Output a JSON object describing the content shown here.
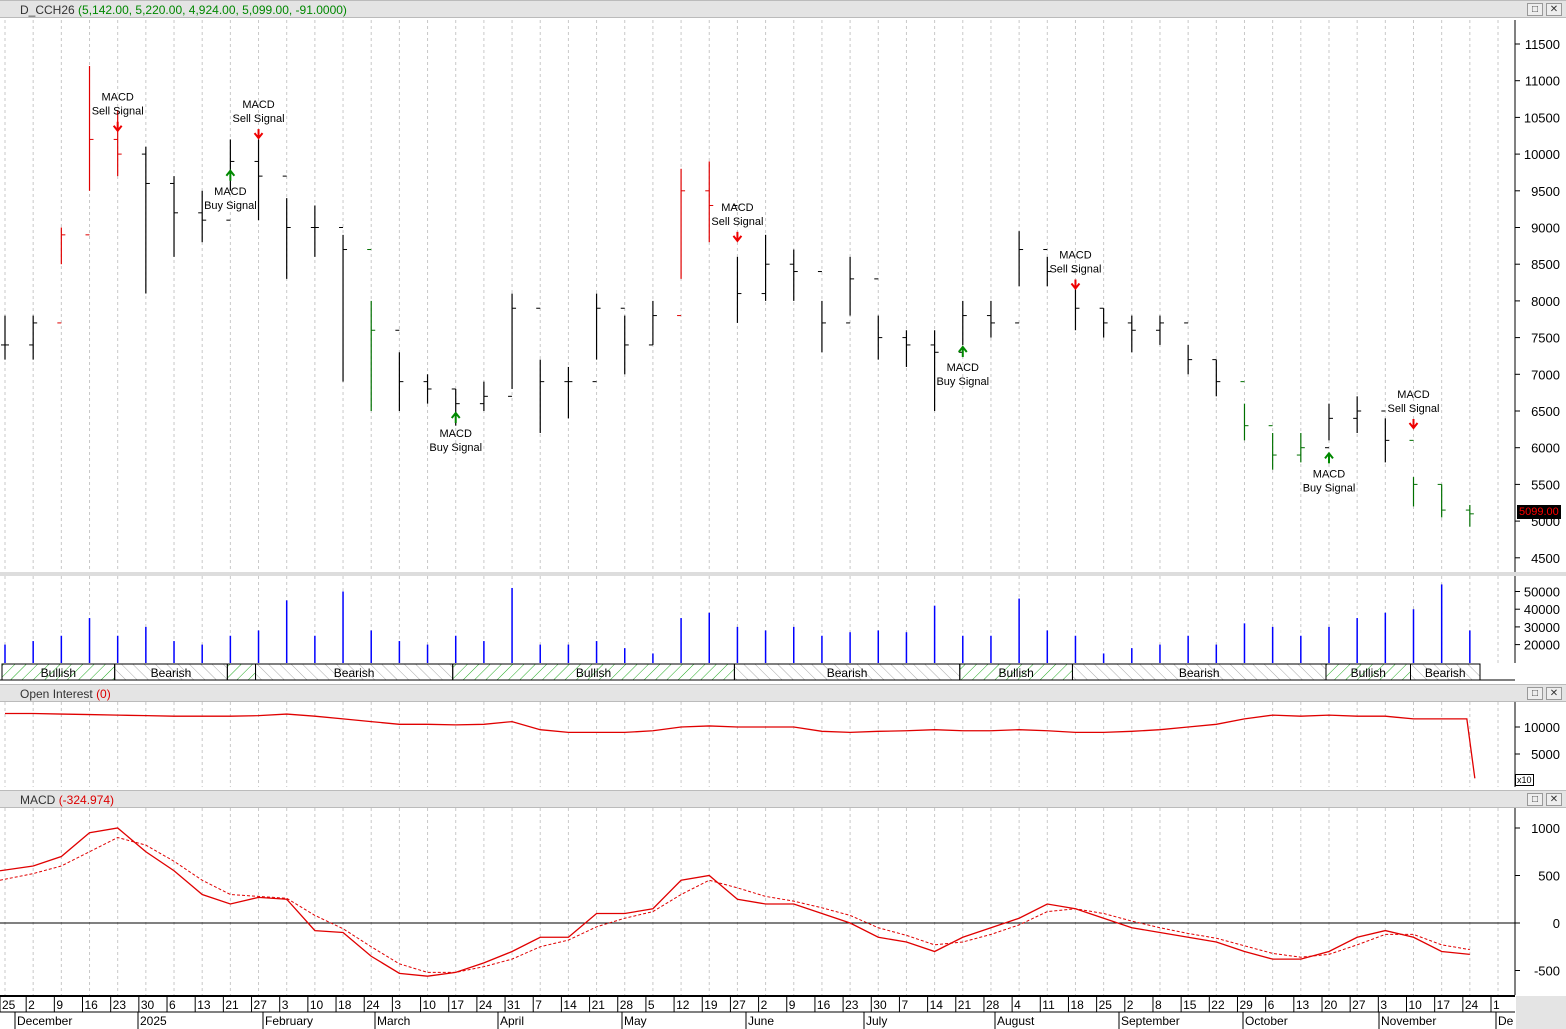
{
  "title": {
    "symbol": "D_CCH26",
    "values": "(5,142.00, 5,220.00, 4,924.00, 5,099.00, -91.0000)"
  },
  "oi_panel": {
    "label": "Open Interest",
    "value": "(0)",
    "scale_note": "x10"
  },
  "macd_panel": {
    "label": "MACD",
    "value": "(-324.974)"
  },
  "window_buttons": {
    "restore": "□",
    "close": "✕"
  },
  "last_price_label": "5099.00",
  "colors": {
    "up": "#e00000",
    "down": "#007000",
    "neutral": "#000000",
    "volume": "#0000ff",
    "oi": "#e00000",
    "macd": "#e00000",
    "last_price_bg": "#000000",
    "last_price_fg": "#ff0000"
  },
  "chart_data": [
    {
      "type": "ohlc",
      "title": "D_CCH26",
      "ylim": [
        4300,
        11800
      ],
      "yticks": [
        4500,
        5000,
        5500,
        6000,
        6500,
        7000,
        7500,
        8000,
        8500,
        9000,
        9500,
        10000,
        10500,
        11000,
        11500
      ],
      "x": [
        "Nov 25",
        "Dec 2",
        "Dec 9",
        "Dec 16",
        "Dec 23",
        "Dec 30",
        "Jan 6",
        "Jan 13",
        "Jan 21",
        "Jan 27",
        "Feb 3",
        "Feb 10",
        "Feb 18",
        "Feb 24",
        "Mar 3",
        "Mar 10",
        "Mar 17",
        "Mar 24",
        "Mar 31",
        "Apr 7",
        "Apr 14",
        "Apr 21",
        "Apr 28",
        "May 5",
        "May 12",
        "May 19",
        "May 27",
        "Jun 2",
        "Jun 9",
        "Jun 16",
        "Jun 23",
        "Jun 30",
        "Jul 7",
        "Jul 14",
        "Jul 21",
        "Jul 28",
        "Aug 4",
        "Aug 11",
        "Aug 18",
        "Aug 25",
        "Sep 2",
        "Sep 8",
        "Sep 15",
        "Sep 22",
        "Sep 29",
        "Oct 6",
        "Oct 13",
        "Oct 20",
        "Oct 27",
        "Nov 3",
        "Nov 10",
        "Nov 17",
        "Nov 24"
      ],
      "high": [
        7800,
        7800,
        9000,
        11200,
        10600,
        10100,
        9700,
        9500,
        10200,
        10200,
        9400,
        9300,
        8900,
        8000,
        7300,
        7000,
        6800,
        6900,
        8100,
        7200,
        7100,
        8100,
        7800,
        8000,
        9800,
        9900,
        8600,
        8900,
        8700,
        8000,
        8600,
        7800,
        7600,
        7600,
        8000,
        8000,
        8950,
        8600,
        8200,
        7900,
        7800,
        7800,
        7400,
        7200,
        6600,
        6200,
        6200,
        6600,
        6700,
        6400,
        5600,
        5500,
        5220
      ],
      "low": [
        7200,
        7200,
        8500,
        9500,
        9700,
        8100,
        8600,
        8800,
        9500,
        9100,
        8300,
        8600,
        6900,
        6500,
        6500,
        6600,
        6300,
        6500,
        6800,
        6200,
        6400,
        7200,
        7000,
        7400,
        8300,
        8800,
        7700,
        8000,
        8000,
        7300,
        7800,
        7200,
        7100,
        6500,
        7400,
        7500,
        8200,
        8200,
        7600,
        7500,
        7300,
        7400,
        7000,
        6700,
        6100,
        5700,
        5800,
        6100,
        6200,
        5800,
        5200,
        5050,
        4924
      ],
      "close": [
        7400,
        7700,
        8900,
        10200,
        10000,
        9600,
        9200,
        9100,
        9900,
        9700,
        9000,
        9000,
        8700,
        7600,
        6900,
        6800,
        6600,
        6700,
        7900,
        6900,
        6900,
        7900,
        7400,
        7800,
        9500,
        9300,
        8100,
        8500,
        8400,
        7700,
        8300,
        7500,
        7400,
        7300,
        7800,
        7700,
        8700,
        8400,
        7900,
        7700,
        7600,
        7700,
        7200,
        6900,
        6300,
        5900,
        6000,
        6400,
        6500,
        6100,
        5500,
        5150,
        5099
      ],
      "bar_color": [
        "n",
        "n",
        "u",
        "u",
        "u",
        "n",
        "n",
        "n",
        "n",
        "n",
        "n",
        "n",
        "n",
        "d",
        "n",
        "n",
        "n",
        "n",
        "n",
        "n",
        "n",
        "n",
        "n",
        "n",
        "u",
        "u",
        "n",
        "n",
        "n",
        "n",
        "n",
        "n",
        "n",
        "n",
        "n",
        "n",
        "n",
        "n",
        "n",
        "n",
        "n",
        "n",
        "n",
        "n",
        "d",
        "d",
        "d",
        "n",
        "n",
        "n",
        "d",
        "d",
        "d"
      ],
      "annotations": [
        {
          "date": "Dec 23",
          "price": 10400,
          "type": "sell",
          "line1": "MACD",
          "line2": "Sell Signal"
        },
        {
          "date": "Jan 21",
          "price": 9800,
          "type": "buy",
          "line1": "MACD",
          "line2": "Buy Signal"
        },
        {
          "date": "Jan 27",
          "price": 10300,
          "type": "sell",
          "line1": "MACD",
          "line2": "Sell Signal"
        },
        {
          "date": "Mar 17",
          "price": 6500,
          "type": "buy",
          "line1": "MACD",
          "line2": "Buy Signal"
        },
        {
          "date": "May 27",
          "price": 8900,
          "type": "sell",
          "line1": "MACD",
          "line2": "Sell Signal"
        },
        {
          "date": "Jul 21",
          "price": 7400,
          "type": "buy",
          "line1": "MACD",
          "line2": "Buy Signal"
        },
        {
          "date": "Aug 18",
          "price": 8250,
          "type": "sell",
          "line1": "MACD",
          "line2": "Sell Signal"
        },
        {
          "date": "Oct 20",
          "price": 5950,
          "type": "buy",
          "line1": "MACD",
          "line2": "Buy Signal"
        },
        {
          "date": "Nov 10",
          "price": 6350,
          "type": "sell",
          "line1": "MACD",
          "line2": "Sell Signal"
        }
      ]
    },
    {
      "type": "bar",
      "title": "Volume",
      "yticks": [
        20000,
        30000,
        40000,
        50000
      ],
      "values": [
        20000,
        22000,
        25000,
        35000,
        25000,
        30000,
        22000,
        20000,
        25000,
        28000,
        45000,
        25000,
        50000,
        28000,
        22000,
        20000,
        25000,
        22000,
        52000,
        20000,
        20000,
        22000,
        18000,
        15000,
        35000,
        38000,
        30000,
        28000,
        30000,
        25000,
        27000,
        28000,
        27000,
        42000,
        25000,
        25000,
        46000,
        28000,
        25000,
        15000,
        18000,
        20000,
        25000,
        20000,
        32000,
        30000,
        25000,
        30000,
        35000,
        38000,
        40000,
        54000,
        28000
      ]
    },
    {
      "type": "band",
      "segments": [
        {
          "label": "Bullish",
          "kind": "bull",
          "from": "Nov 25",
          "to": "Dec 23"
        },
        {
          "label": "Bearish",
          "kind": "bear",
          "from": "Dec 23",
          "to": "Jan 21"
        },
        {
          "label": "",
          "kind": "bull",
          "from": "Jan 21",
          "to": "Jan 27"
        },
        {
          "label": "Bearish",
          "kind": "bear",
          "from": "Jan 27",
          "to": "Mar 17"
        },
        {
          "label": "Bullish",
          "kind": "bull",
          "from": "Mar 17",
          "to": "May 27"
        },
        {
          "label": "Bearish",
          "kind": "bear",
          "from": "May 27",
          "to": "Jul 21"
        },
        {
          "label": "Bullish",
          "kind": "bull",
          "from": "Jul 21",
          "to": "Aug 18"
        },
        {
          "label": "Bearish",
          "kind": "bear",
          "from": "Aug 18",
          "to": "Oct 20"
        },
        {
          "label": "Bullish",
          "kind": "bull",
          "from": "Oct 20",
          "to": "Nov 10"
        },
        {
          "label": "Bearish",
          "kind": "bear",
          "from": "Nov 10",
          "to": "Nov 24"
        }
      ]
    },
    {
      "type": "line",
      "title": "Open Interest",
      "yticks": [
        5000,
        10000
      ],
      "values": [
        12500,
        12500,
        12400,
        12300,
        12200,
        12100,
        12000,
        12000,
        12000,
        12100,
        12400,
        12000,
        11500,
        11000,
        10500,
        10500,
        10400,
        10500,
        11000,
        9500,
        9000,
        9000,
        9000,
        9300,
        10000,
        10200,
        10000,
        10000,
        10000,
        9200,
        9000,
        9200,
        9300,
        9500,
        9300,
        9300,
        9500,
        9300,
        9000,
        9000,
        9200,
        9500,
        10000,
        10500,
        11500,
        12200,
        12000,
        12200,
        12000,
        12000,
        11500,
        11500,
        500
      ]
    },
    {
      "type": "line",
      "title": "MACD",
      "yticks": [
        -500,
        0,
        500,
        1000
      ],
      "ylim": [
        -750,
        1100
      ],
      "series": [
        {
          "style": "solid",
          "values": [
            550,
            600,
            700,
            950,
            1000,
            750,
            550,
            300,
            200,
            270,
            250,
            -80,
            -100,
            -350,
            -530,
            -560,
            -520,
            -420,
            -300,
            -150,
            -150,
            100,
            100,
            150,
            450,
            500,
            250,
            200,
            200,
            100,
            0,
            -150,
            -200,
            -300,
            -150,
            -50,
            50,
            200,
            150,
            50,
            -50,
            -100,
            -150,
            -200,
            -300,
            -380,
            -380,
            -300,
            -150,
            -80,
            -150,
            -300,
            -330
          ]
        },
        {
          "style": "dashed",
          "values": [
            450,
            520,
            600,
            750,
            900,
            820,
            650,
            450,
            300,
            280,
            260,
            80,
            -60,
            -250,
            -430,
            -520,
            -520,
            -460,
            -380,
            -250,
            -180,
            -40,
            50,
            120,
            300,
            450,
            370,
            280,
            230,
            160,
            80,
            -50,
            -130,
            -230,
            -200,
            -120,
            -20,
            120,
            150,
            100,
            20,
            -50,
            -110,
            -160,
            -240,
            -320,
            -360,
            -330,
            -230,
            -120,
            -120,
            -230,
            -280
          ]
        }
      ]
    }
  ],
  "x_axis": {
    "day_ticks": [
      "25",
      "2",
      "9",
      "16",
      "23",
      "30",
      "6",
      "13",
      "21",
      "27",
      "3",
      "10",
      "18",
      "24",
      "3",
      "10",
      "17",
      "24",
      "31",
      "7",
      "14",
      "21",
      "28",
      "5",
      "12",
      "19",
      "27",
      "2",
      "9",
      "16",
      "23",
      "30",
      "7",
      "14",
      "21",
      "28",
      "4",
      "11",
      "18",
      "25",
      "2",
      "8",
      "15",
      "22",
      "29",
      "6",
      "13",
      "20",
      "27",
      "3",
      "10",
      "17",
      "24",
      "1"
    ],
    "months": [
      "December",
      "2025",
      "February",
      "March",
      "April",
      "May",
      "June",
      "July",
      "August",
      "September",
      "October",
      "November",
      "De"
    ]
  }
}
